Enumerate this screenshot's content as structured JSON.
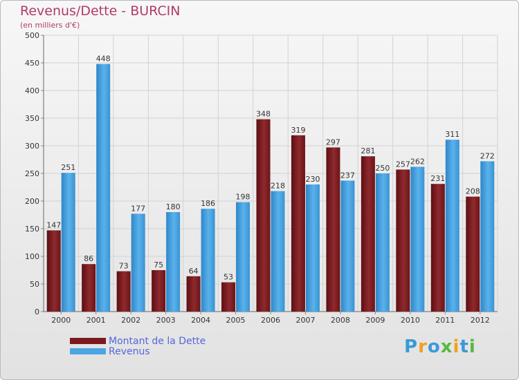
{
  "chart_data": {
    "type": "bar",
    "title": "Revenus/Dette - BURCIN",
    "subtitle": "(en milliers d'€)",
    "categories": [
      "2000",
      "2001",
      "2002",
      "2003",
      "2004",
      "2005",
      "2006",
      "2007",
      "2008",
      "2009",
      "2010",
      "2011",
      "2012"
    ],
    "series": [
      {
        "name": "Montant de la Dette",
        "color": "#7a1a1e",
        "values": [
          147,
          86,
          73,
          75,
          64,
          53,
          348,
          319,
          297,
          281,
          257,
          231,
          208
        ]
      },
      {
        "name": "Revenus",
        "color": "#4ba6e4",
        "values": [
          251,
          448,
          177,
          180,
          186,
          198,
          218,
          230,
          237,
          250,
          262,
          311,
          272
        ]
      }
    ],
    "ylim": [
      0,
      500
    ],
    "yticks": [
      0,
      50,
      100,
      150,
      200,
      250,
      300,
      350,
      400,
      450,
      500
    ],
    "grid": true,
    "xlabel": "",
    "ylabel": ""
  },
  "logo": {
    "text": "Proxiti"
  }
}
